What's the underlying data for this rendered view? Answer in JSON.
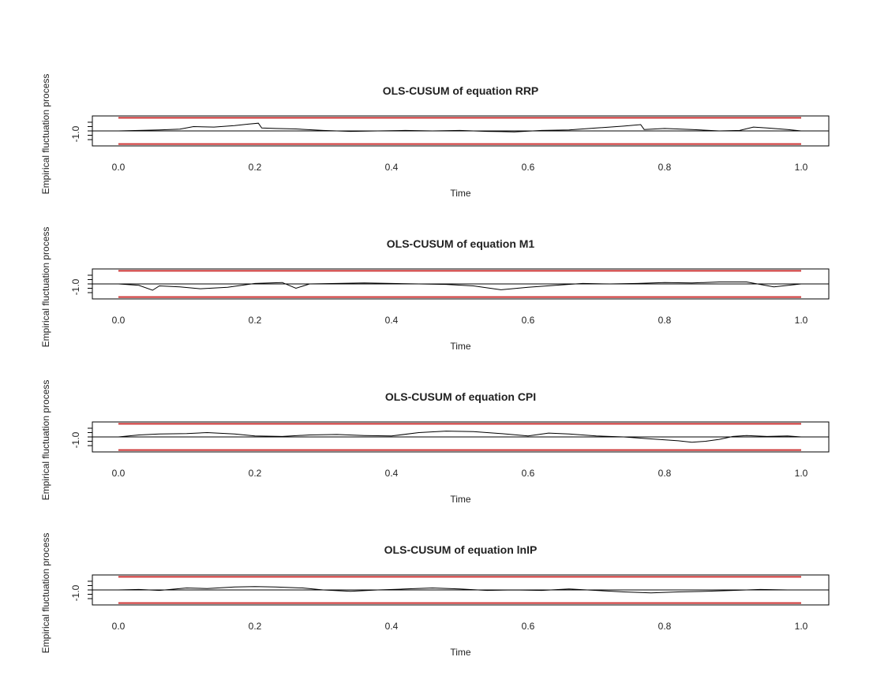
{
  "colors": {
    "background": "#ffffff",
    "frame": "#000000",
    "process_line": "#000000",
    "reference_line": "#000000",
    "boundary": "#cc3333",
    "text": "#222222"
  },
  "chart_data": [
    {
      "type": "line",
      "title": "OLS-CUSUM of equation RRP",
      "xlabel": "Time",
      "ylabel": "Empirical fluctuation process",
      "xlim": [
        -0.04,
        1.04
      ],
      "ylim": [
        -1.55,
        1.55
      ],
      "xticks": [
        0.0,
        0.2,
        0.4,
        0.6,
        0.8,
        1.0
      ],
      "xtick_labels": [
        "0.0",
        "0.2",
        "0.4",
        "0.6",
        "0.8",
        "1.0"
      ],
      "ytick_labels": [
        "-1.0"
      ],
      "boundaries": [
        1.36,
        -1.36
      ],
      "reference": 0,
      "series": [
        {
          "x": [
            0,
            0.03,
            0.06,
            0.09,
            0.11,
            0.14,
            0.17,
            0.19,
            0.205,
            0.21,
            0.23,
            0.26,
            0.3,
            0.34,
            0.38,
            0.42,
            0.46,
            0.5,
            0.54,
            0.58,
            0.62,
            0.66,
            0.7,
            0.74,
            0.765,
            0.77,
            0.8,
            0.84,
            0.88,
            0.91,
            0.93,
            0.95,
            0.98,
            1.0
          ],
          "y": [
            0,
            0.05,
            0.1,
            0.18,
            0.45,
            0.4,
            0.55,
            0.7,
            0.8,
            0.3,
            0.25,
            0.2,
            0.05,
            -0.05,
            0.0,
            0.05,
            0.0,
            0.05,
            -0.05,
            -0.1,
            0.05,
            0.1,
            0.3,
            0.5,
            0.65,
            0.15,
            0.25,
            0.15,
            0.0,
            0.05,
            0.4,
            0.3,
            0.15,
            0.0
          ]
        }
      ]
    },
    {
      "type": "line",
      "title": "OLS-CUSUM of equation M1",
      "xlabel": "Time",
      "ylabel": "Empirical fluctuation process",
      "xlim": [
        -0.04,
        1.04
      ],
      "ylim": [
        -1.55,
        1.55
      ],
      "xticks": [
        0.0,
        0.2,
        0.4,
        0.6,
        0.8,
        1.0
      ],
      "xtick_labels": [
        "0.0",
        "0.2",
        "0.4",
        "0.6",
        "0.8",
        "1.0"
      ],
      "ytick_labels": [
        "-1.0"
      ],
      "boundaries": [
        1.36,
        -1.36
      ],
      "reference": 0,
      "series": [
        {
          "x": [
            0,
            0.03,
            0.05,
            0.06,
            0.09,
            0.12,
            0.16,
            0.2,
            0.24,
            0.26,
            0.28,
            0.32,
            0.36,
            0.4,
            0.44,
            0.48,
            0.52,
            0.56,
            0.6,
            0.64,
            0.68,
            0.72,
            0.76,
            0.8,
            0.84,
            0.88,
            0.92,
            0.96,
            1.0
          ],
          "y": [
            0,
            -0.15,
            -0.65,
            -0.2,
            -0.3,
            -0.5,
            -0.35,
            0.05,
            0.15,
            -0.45,
            0.0,
            0.05,
            0.1,
            0.05,
            0.0,
            -0.05,
            -0.2,
            -0.6,
            -0.35,
            -0.15,
            0.05,
            0.0,
            0.05,
            0.15,
            0.1,
            0.2,
            0.2,
            -0.3,
            0.0
          ]
        }
      ]
    },
    {
      "type": "line",
      "title": "OLS-CUSUM of equation CPI",
      "xlabel": "Time",
      "ylabel": "Empirical fluctuation process",
      "xlim": [
        -0.04,
        1.04
      ],
      "ylim": [
        -1.55,
        1.55
      ],
      "xticks": [
        0.0,
        0.2,
        0.4,
        0.6,
        0.8,
        1.0
      ],
      "xtick_labels": [
        "0.0",
        "0.2",
        "0.4",
        "0.6",
        "0.8",
        "1.0"
      ],
      "ytick_labels": [
        "-1.0"
      ],
      "boundaries": [
        1.36,
        -1.36
      ],
      "reference": 0,
      "series": [
        {
          "x": [
            0,
            0.03,
            0.06,
            0.1,
            0.13,
            0.17,
            0.2,
            0.24,
            0.28,
            0.32,
            0.36,
            0.4,
            0.44,
            0.48,
            0.52,
            0.56,
            0.6,
            0.63,
            0.66,
            0.7,
            0.74,
            0.78,
            0.82,
            0.84,
            0.86,
            0.88,
            0.9,
            0.92,
            0.95,
            0.98,
            1.0
          ],
          "y": [
            0,
            0.2,
            0.3,
            0.35,
            0.45,
            0.3,
            0.1,
            0.05,
            0.2,
            0.25,
            0.15,
            0.1,
            0.45,
            0.6,
            0.55,
            0.35,
            0.1,
            0.4,
            0.3,
            0.1,
            0.0,
            -0.2,
            -0.4,
            -0.55,
            -0.45,
            -0.25,
            0.05,
            0.15,
            0.05,
            0.1,
            0.0
          ]
        }
      ]
    },
    {
      "type": "line",
      "title": "OLS-CUSUM of equation lnIP",
      "xlabel": "Time",
      "ylabel": "Empirical fluctuation process",
      "xlim": [
        -0.04,
        1.04
      ],
      "ylim": [
        -1.55,
        1.55
      ],
      "xticks": [
        0.0,
        0.2,
        0.4,
        0.6,
        0.8,
        1.0
      ],
      "xtick_labels": [
        "0.0",
        "0.2",
        "0.4",
        "0.6",
        "0.8",
        "1.0"
      ],
      "ytick_labels": [
        "-1.0"
      ],
      "boundaries": [
        1.36,
        -1.36
      ],
      "reference": 0,
      "series": [
        {
          "x": [
            0,
            0.03,
            0.06,
            0.1,
            0.13,
            0.17,
            0.2,
            0.23,
            0.27,
            0.3,
            0.34,
            0.38,
            0.42,
            0.46,
            0.5,
            0.54,
            0.58,
            0.62,
            0.66,
            0.7,
            0.74,
            0.78,
            0.82,
            0.86,
            0.9,
            0.94,
            0.98,
            1.0
          ],
          "y": [
            0,
            0.05,
            -0.05,
            0.2,
            0.15,
            0.3,
            0.35,
            0.3,
            0.2,
            0.0,
            -0.15,
            0.0,
            0.1,
            0.2,
            0.1,
            -0.05,
            0.0,
            -0.05,
            0.1,
            -0.05,
            -0.2,
            -0.3,
            -0.2,
            -0.15,
            -0.05,
            0.05,
            0.0,
            0.0
          ]
        }
      ]
    }
  ]
}
